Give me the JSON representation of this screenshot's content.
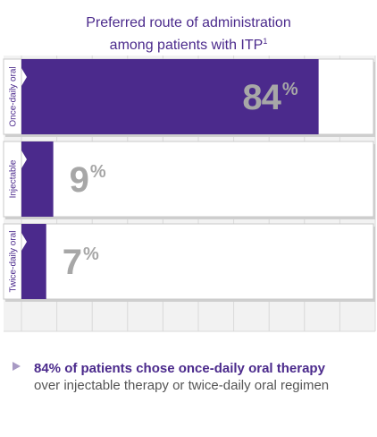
{
  "chart_data": {
    "type": "bar",
    "orientation": "horizontal",
    "title_line1": "Preferred route of administration",
    "title_line2": "among patients with ITP",
    "title_superscript": "1",
    "categories": [
      "Once-daily oral",
      "Injectable",
      "Twice-daily oral"
    ],
    "values": [
      84,
      9,
      7
    ],
    "value_labels": [
      "84",
      "9",
      "7"
    ],
    "unit": "%",
    "xlim": [
      0,
      100
    ],
    "grid": true,
    "bar_color": "#4b2a8c",
    "value_label_color": "#a7a7a7"
  },
  "note": {
    "line1": "84% of patients chose once-daily oral therapy",
    "line2": "over injectable therapy or twice-daily oral regimen"
  }
}
